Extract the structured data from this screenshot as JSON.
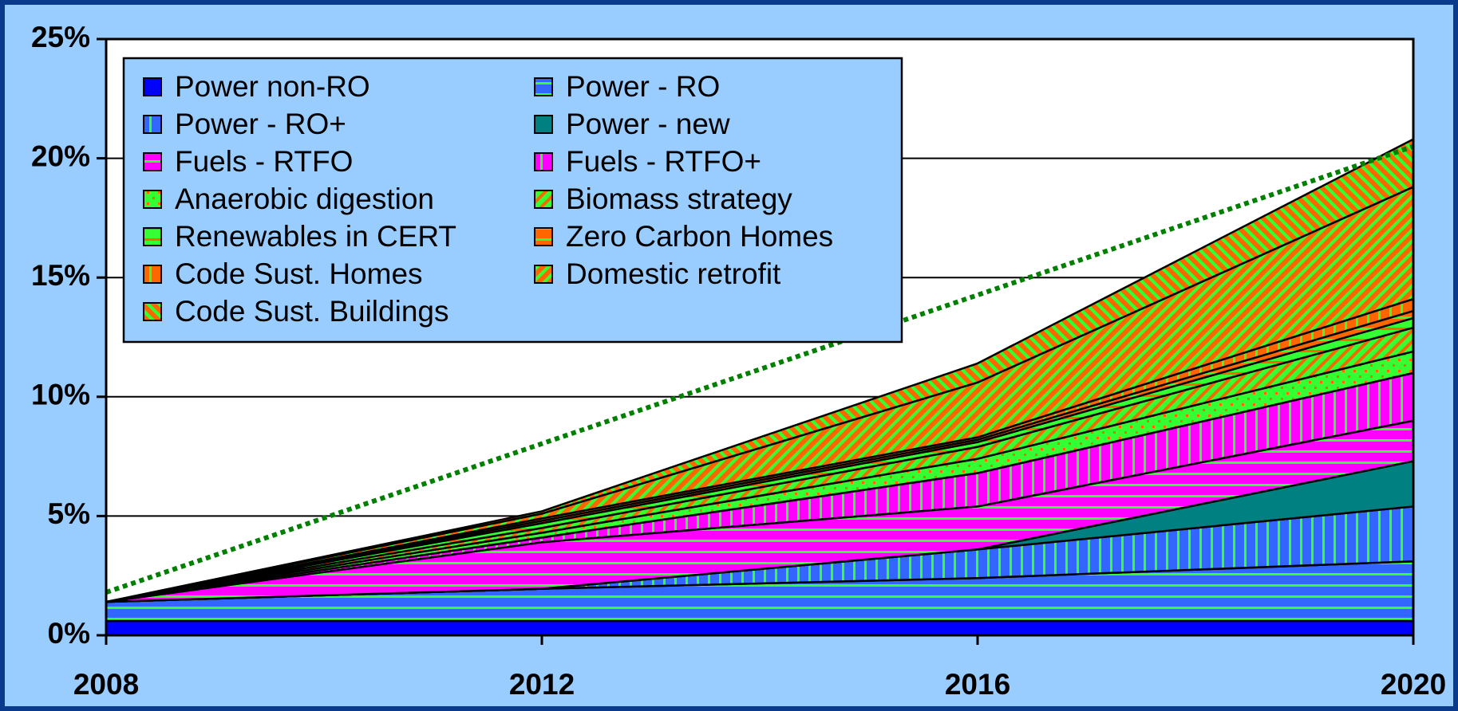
{
  "chart_data": {
    "type": "stacked_area",
    "x": [
      2008,
      2012,
      2016,
      2020
    ],
    "xticks": [
      2008,
      2012,
      2016,
      2020
    ],
    "xlim": [
      2008,
      2020
    ],
    "ylim": [
      0,
      25
    ],
    "yticks": [
      {
        "value": 0,
        "label": "0%"
      },
      {
        "value": 5,
        "label": "5%"
      },
      {
        "value": 10,
        "label": "10%"
      },
      {
        "value": 15,
        "label": "15%"
      },
      {
        "value": 20,
        "label": "20%"
      },
      {
        "value": 25,
        "label": "25%"
      }
    ],
    "grid": true,
    "legend": "top-left",
    "series": [
      {
        "name": "Power non-RO",
        "color": "#0000ff",
        "pattern": "solid",
        "pattern_color": "#0000ff",
        "values": [
          0.6,
          0.6,
          0.6,
          0.6
        ]
      },
      {
        "name": "Power - RO",
        "color": "#3366ff",
        "pattern": "horizontal",
        "pattern_color": "#33ff33",
        "values": [
          0.8,
          1.35,
          1.8,
          2.5
        ]
      },
      {
        "name": "Power - RO+",
        "color": "#3366ff",
        "pattern": "vertical",
        "pattern_color": "#33ff33",
        "values": [
          0,
          0,
          1.2,
          2.3
        ]
      },
      {
        "name": "Power - new",
        "color": "#008080",
        "pattern": "solid",
        "pattern_color": "#008080",
        "values": [
          0,
          0,
          0,
          1.9
        ]
      },
      {
        "name": "Fuels - RTFO",
        "color": "#ff00ff",
        "pattern": "horizontal",
        "pattern_color": "#33ff33",
        "values": [
          0,
          1.95,
          1.8,
          1.7
        ]
      },
      {
        "name": "Fuels - RTFO+",
        "color": "#ff00ff",
        "pattern": "vertical",
        "pattern_color": "#33ff33",
        "values": [
          0,
          0.2,
          1.4,
          2.0
        ]
      },
      {
        "name": "Anaerobic digestion",
        "color": "#33ff33",
        "pattern": "dots",
        "pattern_color": "#ff6600",
        "values": [
          0,
          0.2,
          0.6,
          0.9
        ]
      },
      {
        "name": "Biomass strategy",
        "color": "#33ff33",
        "pattern": "diagonal",
        "pattern_color": "#ff6600",
        "values": [
          0,
          0.2,
          0.5,
          1.0
        ]
      },
      {
        "name": "Renewables in CERT",
        "color": "#33ff33",
        "pattern": "horizontal",
        "pattern_color": "#ff6600",
        "values": [
          0,
          0.2,
          0.2,
          0.4
        ]
      },
      {
        "name": "Zero Carbon Homes",
        "color": "#ff6600",
        "pattern": "horizontal",
        "pattern_color": "#33ff33",
        "values": [
          0,
          0.1,
          0.1,
          0.3
        ]
      },
      {
        "name": "Code Sust. Homes",
        "color": "#ff6600",
        "pattern": "vertical",
        "pattern_color": "#33ff33",
        "values": [
          0,
          0.1,
          0.1,
          0.5
        ]
      },
      {
        "name": "Domestic retrofit",
        "color": "#ff6600",
        "pattern": "diagonal",
        "pattern_color": "#33ff33",
        "values": [
          0,
          0.2,
          2.3,
          4.7
        ]
      },
      {
        "name": "Code Sust. Buildings",
        "color": "#ff6600",
        "pattern": "antidiagonal",
        "pattern_color": "#33ff33",
        "values": [
          0,
          0.1,
          0.8,
          2.0
        ]
      }
    ],
    "dotted_line": {
      "color": "#008000",
      "x": [
        2008,
        2020
      ],
      "values": [
        1.8,
        20.5
      ]
    }
  }
}
